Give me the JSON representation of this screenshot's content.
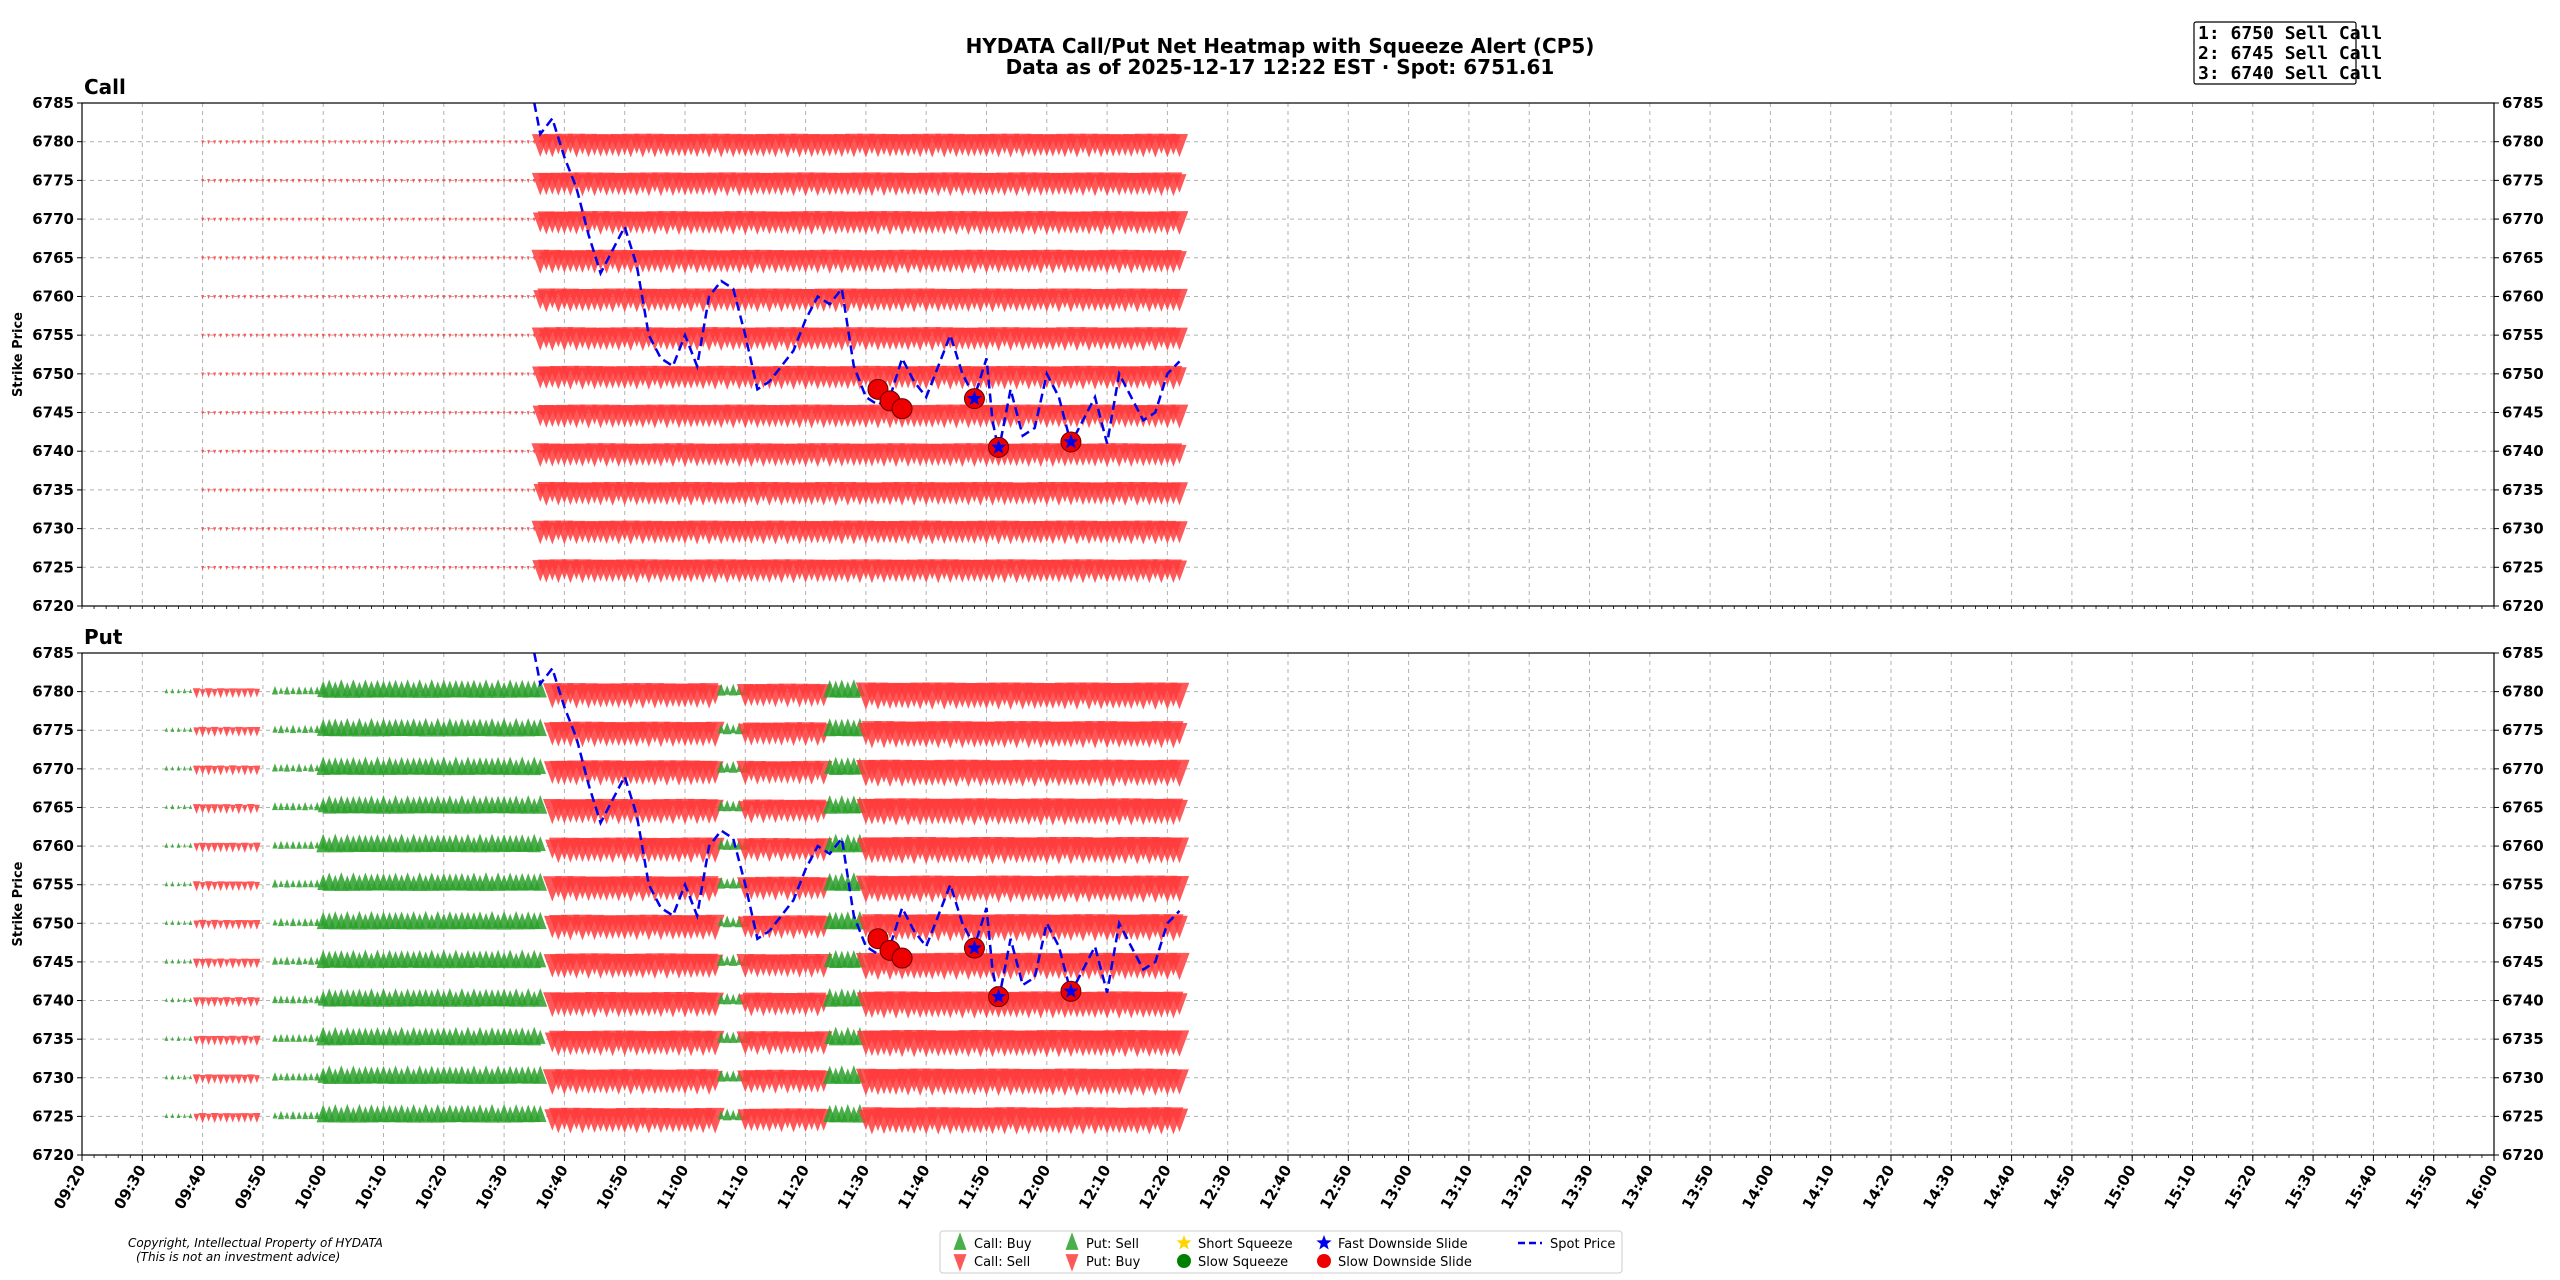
{
  "title_line1": "HYDATA Call/Put Net Heatmap with Squeeze Alert (CP5)",
  "title_line2": "Data as of 2025-12-17 12:22 EST · Spot: 6751.61",
  "alerts": [
    "1: 6750 Sell Call",
    "2: 6745 Sell Call",
    "3: 6740 Sell Call"
  ],
  "copyright_line1": "Copyright, Intellectual Property of HYDATA",
  "copyright_line2": "(This is not an investment advice)",
  "colors": {
    "buy": "#2ca02c",
    "sell": "#ff3b3b",
    "spot": "#0000ee",
    "slow_slide": "#ee0000",
    "fast_slide": "#0000ee",
    "short_squeeze": "#ffd700",
    "slow_squeeze": "#008000"
  },
  "legend": [
    {
      "label": "Call: Buy",
      "marker": "triangle-up",
      "color": "#2ca02c"
    },
    {
      "label": "Call: Sell",
      "marker": "triangle-down",
      "color": "#ff3b3b"
    },
    {
      "label": "Put: Sell",
      "marker": "triangle-up",
      "color": "#2ca02c"
    },
    {
      "label": "Put: Buy",
      "marker": "triangle-down",
      "color": "#ff3b3b"
    },
    {
      "label": "Short Squeeze",
      "marker": "star",
      "color": "#ffd700"
    },
    {
      "label": "Slow Squeeze",
      "marker": "circle",
      "color": "#008000"
    },
    {
      "label": "Fast Downside Slide",
      "marker": "star",
      "color": "#0000ee"
    },
    {
      "label": "Slow Downside Slide",
      "marker": "circle",
      "color": "#ee0000"
    },
    {
      "label": "Spot Price",
      "marker": "dashed-line",
      "color": "#0000ee"
    }
  ],
  "chart_data": {
    "type": "scatter",
    "xlabel": "",
    "ylabel": "Strike Price",
    "x_ticks": [
      "09:20",
      "09:30",
      "09:40",
      "09:50",
      "10:00",
      "10:10",
      "10:20",
      "10:30",
      "10:40",
      "10:50",
      "11:00",
      "11:10",
      "11:20",
      "11:30",
      "11:40",
      "11:50",
      "12:00",
      "12:10",
      "12:20",
      "12:30",
      "12:40",
      "12:50",
      "13:00",
      "13:10",
      "13:20",
      "13:30",
      "13:40",
      "13:50",
      "14:00",
      "14:10",
      "14:20",
      "14:30",
      "14:40",
      "14:50",
      "15:00",
      "15:10",
      "15:20",
      "15:30",
      "15:40",
      "15:50",
      "16:00"
    ],
    "xlim": [
      "09:20",
      "16:00"
    ],
    "ylim": [
      6720,
      6785
    ],
    "y_ticks": [
      6720,
      6725,
      6730,
      6735,
      6740,
      6745,
      6750,
      6755,
      6760,
      6765,
      6770,
      6775,
      6780,
      6785
    ],
    "grid": true,
    "legend_position": "bottom-center",
    "panels": [
      {
        "title": "Call",
        "strikes": [
          6725,
          6730,
          6735,
          6740,
          6745,
          6750,
          6755,
          6760,
          6765,
          6770,
          6775,
          6780
        ],
        "segments": [
          {
            "from": "09:40",
            "to": "10:36",
            "sign": -1,
            "size": 0.06
          },
          {
            "from": "10:36",
            "to": "12:22",
            "sign": -1,
            "size": 0.7
          }
        ]
      },
      {
        "title": "Put",
        "strikes": [
          6725,
          6730,
          6735,
          6740,
          6745,
          6750,
          6755,
          6760,
          6765,
          6770,
          6775,
          6780
        ],
        "segments": [
          {
            "from": "09:34",
            "to": "09:38",
            "sign": 1,
            "size": 0.15
          },
          {
            "from": "09:39",
            "to": "09:49",
            "sign": -1,
            "size": 0.3
          },
          {
            "from": "09:52",
            "to": "10:00",
            "sign": 1,
            "size": 0.25
          },
          {
            "from": "10:00",
            "to": "10:36",
            "sign": 1,
            "size": 0.55
          },
          {
            "from": "10:38",
            "to": "11:05",
            "sign": -1,
            "size": 0.75
          },
          {
            "from": "11:06",
            "to": "11:10",
            "sign": 1,
            "size": 0.35
          },
          {
            "from": "11:10",
            "to": "11:23",
            "sign": -1,
            "size": 0.7
          },
          {
            "from": "11:24",
            "to": "11:29",
            "sign": 1,
            "size": 0.55
          },
          {
            "from": "11:30",
            "to": "12:22",
            "sign": -1,
            "size": 0.8
          }
        ]
      }
    ],
    "spot_price": {
      "name": "Spot Price",
      "x": [
        "10:35",
        "10:36",
        "10:38",
        "10:40",
        "10:42",
        "10:44",
        "10:46",
        "10:48",
        "10:50",
        "10:52",
        "10:54",
        "10:56",
        "10:58",
        "11:00",
        "11:02",
        "11:04",
        "11:06",
        "11:08",
        "11:10",
        "11:12",
        "11:14",
        "11:16",
        "11:18",
        "11:20",
        "11:22",
        "11:24",
        "11:26",
        "11:28",
        "11:30",
        "11:32",
        "11:34",
        "11:36",
        "11:38",
        "11:40",
        "11:42",
        "11:44",
        "11:46",
        "11:48",
        "11:50",
        "11:51",
        "11:52",
        "11:53",
        "11:54",
        "11:56",
        "11:58",
        "12:00",
        "12:02",
        "12:04",
        "12:06",
        "12:08",
        "12:10",
        "12:12",
        "12:14",
        "12:16",
        "12:18",
        "12:20",
        "12:22"
      ],
      "y": [
        6786,
        6781,
        6783,
        6778,
        6774,
        6768,
        6763,
        6766,
        6769,
        6764,
        6755,
        6752,
        6751,
        6755,
        6751,
        6760,
        6762,
        6761,
        6755,
        6748,
        6749,
        6751,
        6753,
        6757,
        6760,
        6759,
        6761,
        6751,
        6747,
        6746,
        6747,
        6752,
        6749,
        6747,
        6751,
        6755,
        6750,
        6747,
        6752,
        6744,
        6740,
        6744,
        6748,
        6742,
        6743,
        6750,
        6747,
        6741,
        6744,
        6747,
        6741,
        6750,
        6747,
        6744,
        6745,
        6750,
        6751.61
      ]
    },
    "slow_downside_slide": [
      {
        "x": "11:32",
        "y": 6748
      },
      {
        "x": "11:34",
        "y": 6746.5
      },
      {
        "x": "11:36",
        "y": 6745.5
      }
    ],
    "fast_downside_slide": [
      {
        "x": "11:48",
        "y": 6746.8
      },
      {
        "x": "11:52",
        "y": 6740.5
      },
      {
        "x": "12:04",
        "y": 6741.2
      }
    ]
  }
}
